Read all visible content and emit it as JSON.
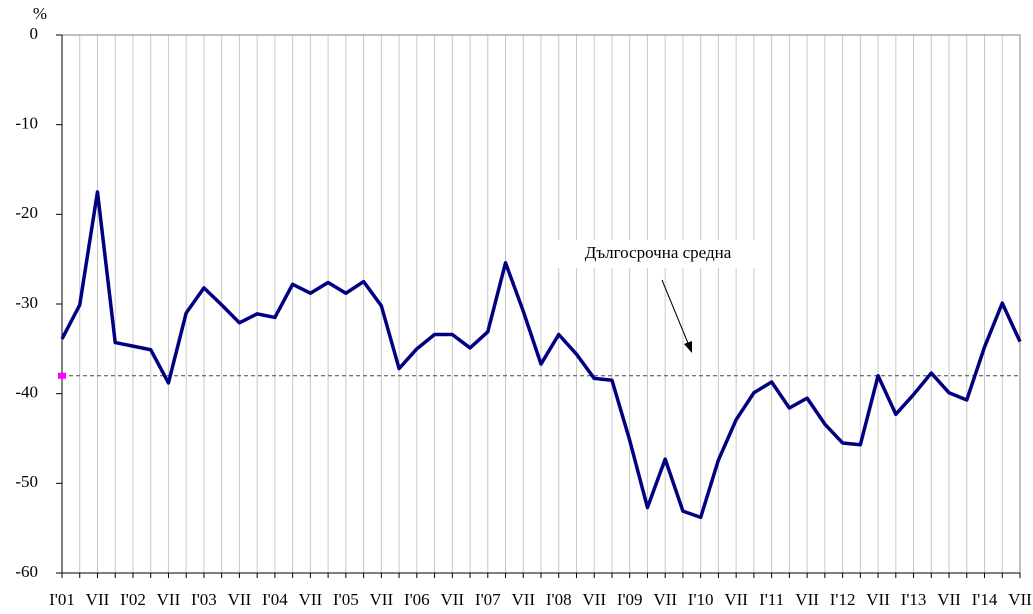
{
  "chart_data": {
    "type": "line",
    "ylabel": "%",
    "categories": [
      "I'01",
      null,
      "VII",
      null,
      "I'02",
      null,
      "VII",
      null,
      "I'03",
      null,
      "VII",
      null,
      "I'04",
      null,
      "VII",
      null,
      "I'05",
      null,
      "VII",
      null,
      "I'06",
      null,
      "VII",
      null,
      "I'07",
      null,
      "VII",
      null,
      "I'08",
      null,
      "VII",
      null,
      "I'09",
      null,
      "VII",
      null,
      "I'10",
      null,
      "VII",
      null,
      "I'11",
      null,
      "VII",
      null,
      "I'12",
      null,
      "VII",
      null,
      "I'13",
      null,
      "VII",
      null,
      "I'14",
      null,
      "VII"
    ],
    "series": [
      {
        "color": "#000080",
        "values": [
          -33.9,
          -30.1,
          -17.5,
          -34.3,
          -34.7,
          -35.1,
          -38.8,
          -31.0,
          -28.2,
          -30.1,
          -32.1,
          -31.1,
          -31.5,
          -27.8,
          -28.8,
          -27.6,
          -28.8,
          -27.5,
          -30.2,
          -37.2,
          -35.0,
          -33.4,
          -33.4,
          -34.9,
          -33.1,
          -25.4,
          -30.8,
          -36.7,
          -33.4,
          -35.6,
          -38.3,
          -38.5,
          -45.2,
          -52.7,
          -47.3,
          -53.1,
          -53.8,
          -47.4,
          -42.9,
          -39.9,
          -38.7,
          -41.6,
          -40.5,
          -43.4,
          -45.5,
          -45.7,
          -38.0,
          -42.3,
          -40.1,
          -37.7,
          -39.9,
          -40.7,
          -34.8,
          -29.9,
          -34.2
        ]
      }
    ],
    "average": {
      "label": "Дългосрочна средна",
      "value": -38,
      "color": "#ff00ff"
    },
    "ylim": [
      -60,
      0
    ],
    "yticks": [
      0,
      -10,
      -20,
      -30,
      -40,
      -50,
      -60
    ],
    "grid": true
  }
}
